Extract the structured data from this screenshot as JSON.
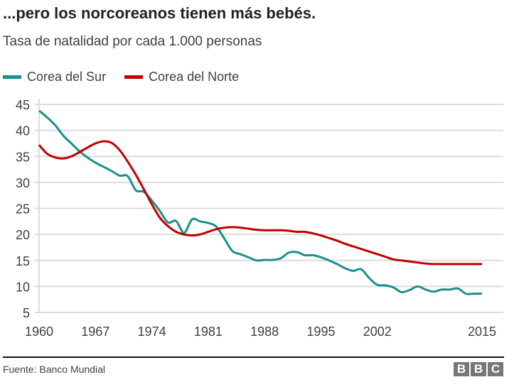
{
  "header": {
    "title": "...pero los norcoreanos tienen más bebés.",
    "subtitle": "Tasa de natalidad por cada 1.000 personas"
  },
  "footer": {
    "source": "Fuente: Banco Mundial",
    "logo": "BBC"
  },
  "chart_data": {
    "type": "line",
    "title": "...pero los norcoreanos tienen más bebés.",
    "subtitle": "Tasa de natalidad por cada 1.000 personas",
    "xlabel": "",
    "ylabel": "",
    "xlim": [
      1960,
      2015
    ],
    "ylim": [
      5,
      45
    ],
    "yticks": [
      "5",
      "10",
      "15",
      "20",
      "25",
      "30",
      "35",
      "40",
      "45"
    ],
    "xticks": [
      "1960",
      "1967",
      "1974",
      "1981",
      "1988",
      "1995",
      "2002",
      "2015"
    ],
    "grid": true,
    "legend": "top-left",
    "x": [
      1960,
      1961,
      1962,
      1963,
      1964,
      1965,
      1966,
      1967,
      1968,
      1969,
      1970,
      1971,
      1972,
      1973,
      1974,
      1975,
      1976,
      1977,
      1978,
      1979,
      1980,
      1981,
      1982,
      1983,
      1984,
      1985,
      1986,
      1987,
      1988,
      1989,
      1990,
      1991,
      1992,
      1993,
      1994,
      1995,
      1996,
      1997,
      1998,
      1999,
      2000,
      2001,
      2002,
      2003,
      2004,
      2005,
      2006,
      2007,
      2008,
      2009,
      2010,
      2011,
      2012,
      2013,
      2014,
      2015
    ],
    "series": [
      {
        "name": "Corea del Sur",
        "color": "#1a8f8c",
        "values": [
          43.8,
          42.5,
          41,
          39,
          37.5,
          36,
          34.8,
          33.8,
          33,
          32.2,
          31.3,
          31.2,
          28.5,
          28.2,
          26.5,
          24.5,
          22.3,
          22.6,
          20.3,
          22.9,
          22.5,
          22.2,
          21.5,
          19.2,
          16.8,
          16.2,
          15.6,
          15,
          15.1,
          15.1,
          15.4,
          16.5,
          16.6,
          16,
          16,
          15.6,
          15,
          14.3,
          13.5,
          13,
          13.3,
          11.6,
          10.3,
          10.2,
          9.8,
          8.9,
          9.3,
          10,
          9.4,
          9,
          9.4,
          9.4,
          9.6,
          8.6,
          8.6,
          8.6
        ]
      },
      {
        "name": "Corea del Norte",
        "color": "#c00000",
        "values": [
          37.2,
          35.5,
          34.8,
          34.6,
          35,
          35.8,
          36.7,
          37.5,
          37.9,
          37.6,
          36.2,
          34,
          31.5,
          28.7,
          25.8,
          23.2,
          21.6,
          20.5,
          20,
          19.8,
          20,
          20.5,
          21,
          21.3,
          21.4,
          21.3,
          21.1,
          20.9,
          20.8,
          20.8,
          20.8,
          20.7,
          20.5,
          20.5,
          20.2,
          19.8,
          19.3,
          18.8,
          18.2,
          17.7,
          17.2,
          16.7,
          16.2,
          15.7,
          15.2,
          15,
          14.8,
          14.6,
          14.4,
          14.3,
          14.3,
          14.3,
          14.3,
          14.3,
          14.3,
          14.3
        ]
      }
    ]
  }
}
